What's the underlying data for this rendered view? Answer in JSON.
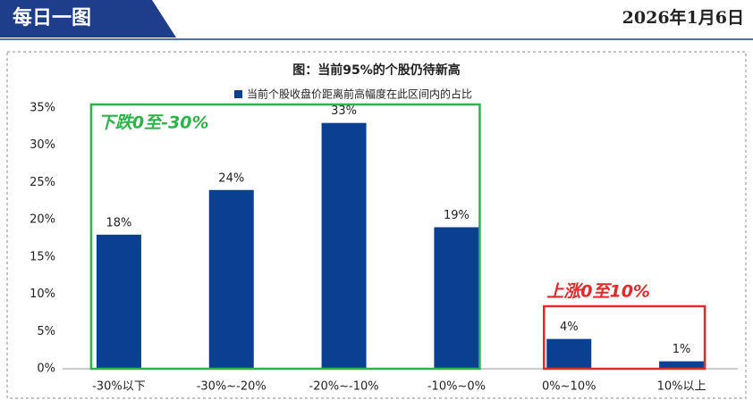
{
  "header": {
    "title": "每日一图",
    "date": "2026年1月6日"
  },
  "chart_data": {
    "type": "bar",
    "title": "图：当前95%的个股仍待新高",
    "categories": [
      "-30%以下",
      "-30%~-20%",
      "-20%~-10%",
      "-10%~0%",
      "0%~10%",
      "10%以上"
    ],
    "series": [
      {
        "name": "当前个股收盘价距离前高幅度在此区间内的占比",
        "color": "#0b3f91",
        "values": [
          18,
          24,
          33,
          19,
          4,
          1
        ],
        "value_labels": [
          "18%",
          "24%",
          "33%",
          "19%",
          "4%",
          "1%"
        ]
      }
    ],
    "ylim": [
      0,
      35
    ],
    "yticks": [
      {
        "value": 0,
        "label": "0%"
      },
      {
        "value": 5,
        "label": "5%"
      },
      {
        "value": 10,
        "label": "10%"
      },
      {
        "value": 15,
        "label": "15%"
      },
      {
        "value": 20,
        "label": "20%"
      },
      {
        "value": 25,
        "label": "25%"
      },
      {
        "value": 30,
        "label": "30%"
      },
      {
        "value": 35,
        "label": "35%"
      }
    ],
    "grid": false,
    "annotations": [
      "下跌0至-30%",
      "上涨0至10%"
    ]
  }
}
